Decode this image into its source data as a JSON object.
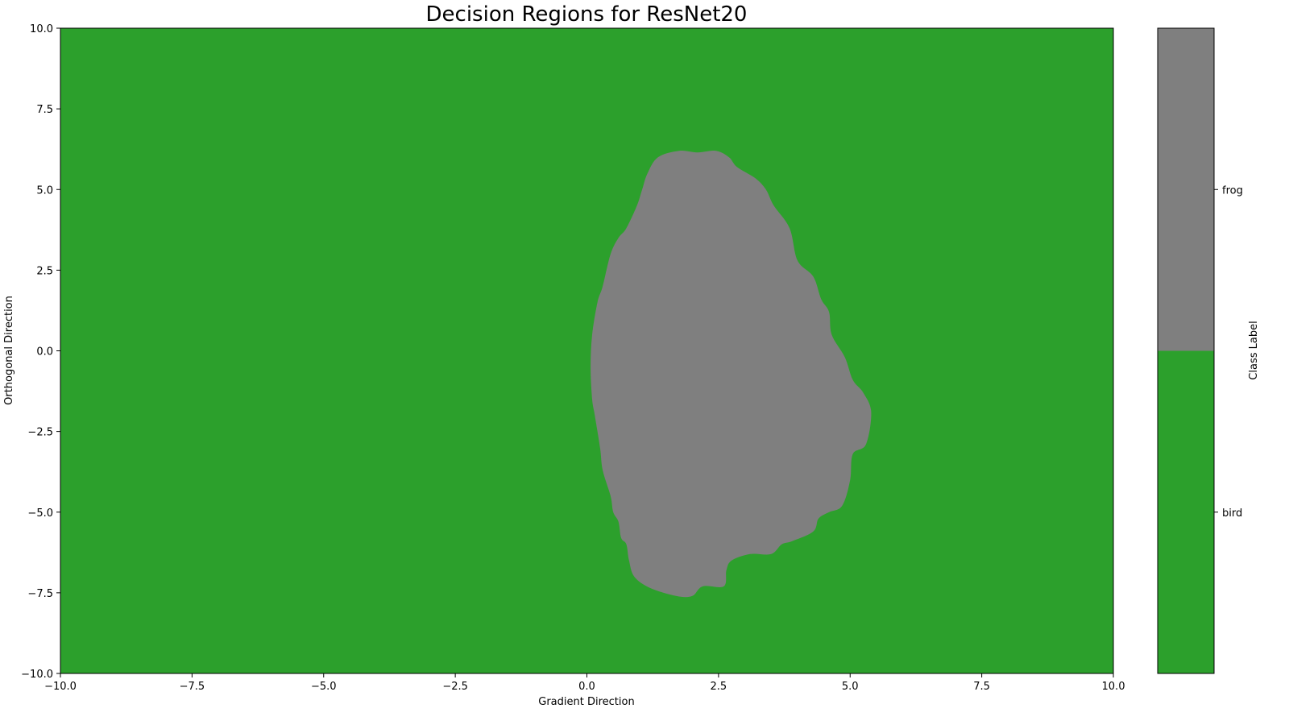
{
  "chart_data": {
    "type": "heatmap",
    "title": "Decision Regions for ResNet20",
    "xlabel": "Gradient Direction",
    "ylabel": "Orthogonal Direction",
    "xlim": [
      -10,
      10
    ],
    "ylim": [
      -10,
      10
    ],
    "xticks": [
      -10,
      -7.5,
      -5,
      -2.5,
      0,
      2.5,
      5,
      7.5,
      10
    ],
    "xtick_labels": [
      "−10.0",
      "−7.5",
      "−5.0",
      "−2.5",
      "0.0",
      "2.5",
      "5.0",
      "7.5",
      "10.0"
    ],
    "yticks": [
      -10,
      -7.5,
      -5,
      -2.5,
      0,
      2.5,
      5,
      7.5,
      10
    ],
    "ytick_labels": [
      "−10.0",
      "−7.5",
      "−5.0",
      "−2.5",
      "0.0",
      "2.5",
      "5.0",
      "7.5",
      "10.0"
    ],
    "grid": false,
    "classes": [
      {
        "name": "bird",
        "color": "#2ca02c"
      },
      {
        "name": "frog",
        "color": "#7f7f7f"
      }
    ],
    "background_class": "bird",
    "regions": [
      {
        "class": "frog",
        "boundary": [
          [
            1.75,
            6.2
          ],
          [
            2.1,
            6.15
          ],
          [
            2.45,
            6.2
          ],
          [
            2.7,
            6.0
          ],
          [
            2.85,
            5.7
          ],
          [
            3.2,
            5.35
          ],
          [
            3.4,
            5.0
          ],
          [
            3.55,
            4.5
          ],
          [
            3.85,
            3.8
          ],
          [
            4.0,
            2.8
          ],
          [
            4.3,
            2.3
          ],
          [
            4.45,
            1.6
          ],
          [
            4.6,
            1.2
          ],
          [
            4.65,
            0.5
          ],
          [
            4.9,
            -0.2
          ],
          [
            5.05,
            -0.9
          ],
          [
            5.25,
            -1.3
          ],
          [
            5.4,
            -1.9
          ],
          [
            5.3,
            -2.9
          ],
          [
            5.05,
            -3.2
          ],
          [
            5.0,
            -4.0
          ],
          [
            4.85,
            -4.8
          ],
          [
            4.6,
            -5.0
          ],
          [
            4.4,
            -5.2
          ],
          [
            4.3,
            -5.6
          ],
          [
            3.9,
            -5.9
          ],
          [
            3.7,
            -6.0
          ],
          [
            3.5,
            -6.3
          ],
          [
            3.1,
            -6.3
          ],
          [
            2.75,
            -6.5
          ],
          [
            2.65,
            -6.8
          ],
          [
            2.6,
            -7.3
          ],
          [
            2.2,
            -7.3
          ],
          [
            2.0,
            -7.6
          ],
          [
            1.7,
            -7.6
          ],
          [
            1.2,
            -7.35
          ],
          [
            0.9,
            -7.0
          ],
          [
            0.8,
            -6.5
          ],
          [
            0.75,
            -6.0
          ],
          [
            0.65,
            -5.8
          ],
          [
            0.6,
            -5.3
          ],
          [
            0.5,
            -5.0
          ],
          [
            0.45,
            -4.5
          ],
          [
            0.3,
            -3.7
          ],
          [
            0.25,
            -3.0
          ],
          [
            0.15,
            -2.0
          ],
          [
            0.1,
            -1.5
          ],
          [
            0.07,
            -0.5
          ],
          [
            0.1,
            0.5
          ],
          [
            0.2,
            1.5
          ],
          [
            0.3,
            2.0
          ],
          [
            0.45,
            3.0
          ],
          [
            0.6,
            3.5
          ],
          [
            0.75,
            3.8
          ],
          [
            0.95,
            4.5
          ],
          [
            1.05,
            5.0
          ],
          [
            1.15,
            5.5
          ],
          [
            1.35,
            6.0
          ]
        ]
      }
    ],
    "colorbar": {
      "label": "Class Label",
      "ticks": [
        "bird",
        "frog"
      ]
    }
  }
}
